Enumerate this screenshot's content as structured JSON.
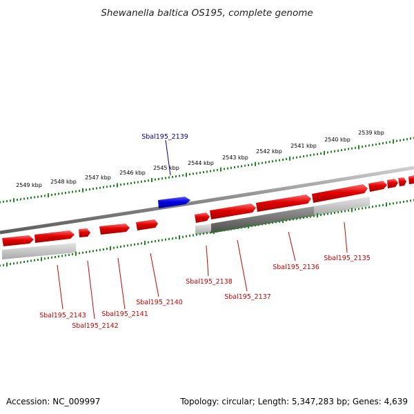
{
  "title": "Shewanella baltica OS195, complete genome",
  "footer": {
    "accession": "Accession: NC_009997",
    "summary": "Topology: circular; Length: 5,347,283 bp; Genes: 4,639"
  },
  "colors": {
    "plus_strand_gene": "#e60000",
    "minus_strand_gene": "#0000e6",
    "label_red": "#cc0000",
    "label_blue": "#000099",
    "tick_green": "#1a8a1a",
    "backbone": "#888888"
  },
  "kbp_labels": [
    "2549 kbp",
    "2548 kbp",
    "2547 kbp",
    "2546 kbp",
    "2545 kbp",
    "2544 kbp",
    "2543 kbp",
    "2542 kbp",
    "2541 kbp",
    "2540 kbp",
    "2539 kbp"
  ],
  "genes": [
    {
      "id": "Sbal195_2139",
      "strand": "minus"
    },
    {
      "id": "Sbal195_2143",
      "strand": "plus"
    },
    {
      "id": "Sbal195_2142",
      "strand": "plus"
    },
    {
      "id": "Sbal195_2141",
      "strand": "plus"
    },
    {
      "id": "Sbal195_2140",
      "strand": "plus"
    },
    {
      "id": "Sbal195_2138",
      "strand": "plus"
    },
    {
      "id": "Sbal195_2137",
      "strand": "plus"
    },
    {
      "id": "Sbal195_2136",
      "strand": "plus"
    },
    {
      "id": "Sbal195_2135",
      "strand": "plus"
    }
  ]
}
